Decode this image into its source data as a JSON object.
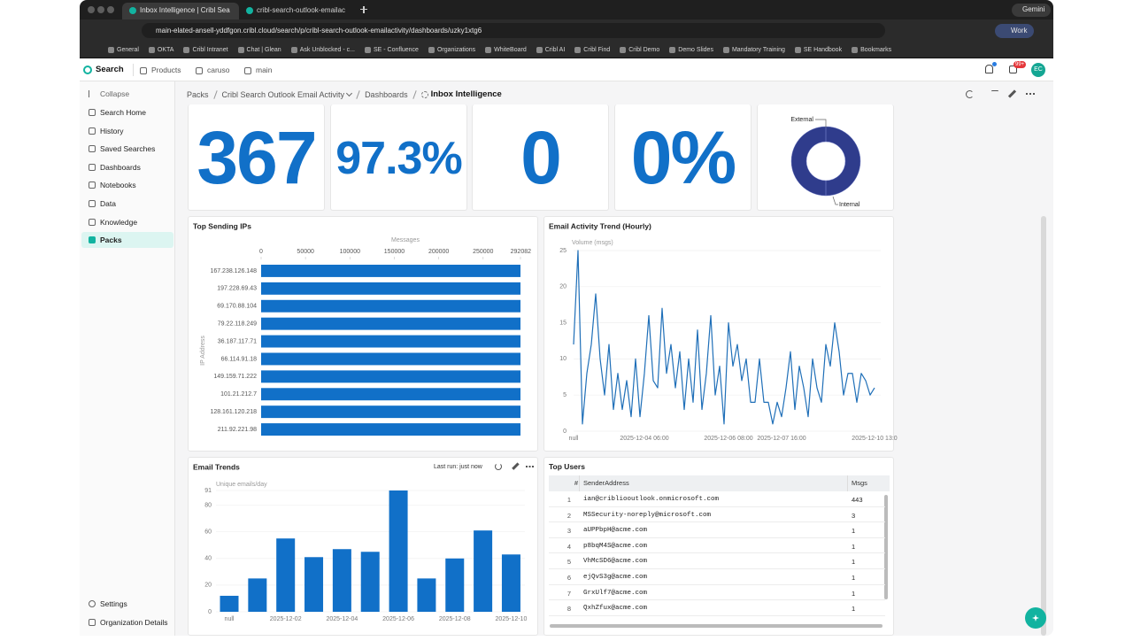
{
  "browser": {
    "tabs": [
      "Inbox Intelligence | Cribl Sea",
      "cribl-search-outlook-emailac"
    ],
    "url": "main-elated-ansell-yddfgon.cribl.cloud/search/p/cribl-search-outlook-emailactivity/dashboards/uzky1xtg6",
    "profile": "Work",
    "assistant": "Gemini",
    "bookmarks": [
      "General",
      "OKTA",
      "Cribl Intranet",
      "Chat | Glean",
      "Ask Unblocked - c...",
      "SE - Confluence",
      "Organizations",
      "WhiteBoard",
      "Cribl AI",
      "Cribl Find",
      "Cribl Demo",
      "Demo Slides",
      "Mandatory Training",
      "SE Handbook",
      "Bookmarks"
    ]
  },
  "app": {
    "product": "Search",
    "menu": [
      "Products",
      "caruso",
      "main"
    ],
    "badge": "99+",
    "avatar": "EC"
  },
  "sidebar": {
    "collapse": "Collapse",
    "items": [
      "Search Home",
      "History",
      "Saved Searches",
      "Dashboards",
      "Notebooks",
      "Data",
      "Knowledge",
      "Packs"
    ],
    "active": 7,
    "bottom": [
      "Settings",
      "Organization Details"
    ]
  },
  "breadcrumb": [
    "Packs",
    "Cribl Search Outlook Email Activity",
    "Dashboards",
    "Inbox Intelligence"
  ],
  "tiles": [
    "367",
    "97.3%",
    "0",
    "0%"
  ],
  "chart_data": [
    {
      "type": "pie",
      "donut": true,
      "categories": [
        "External",
        "Internal"
      ],
      "values": [
        0,
        100
      ],
      "colors": [
        "#5b6bd0",
        "#2f3c8c"
      ]
    },
    {
      "type": "bar",
      "orientation": "horizontal",
      "title": "Top Sending IPs",
      "x_label": "Messages",
      "y_label": "IP Address",
      "color": "#1170c8",
      "categories": [
        "167.238.126.148",
        "197.228.69.43",
        "69.170.88.104",
        "79.22.118.249",
        "36.187.117.71",
        "66.114.91.18",
        "149.159.71.222",
        "101.21.212.7",
        "128.161.120.218",
        "211.92.221.98"
      ],
      "values": [
        292082,
        292082,
        292082,
        292082,
        292082,
        292082,
        292082,
        292082,
        292082,
        292082
      ],
      "xlim": [
        0,
        292082
      ],
      "xticks": [
        0,
        50000,
        100000,
        150000,
        200000,
        250000,
        292082
      ],
      "grid": false
    },
    {
      "type": "line",
      "title": "Email Activity Trend (Hourly)",
      "y_label": "Volume (msgs)",
      "color": "#1f6fb8",
      "categories": [
        "null",
        null,
        null,
        null,
        null,
        null,
        null,
        null,
        null,
        null,
        null,
        null,
        null,
        null,
        null,
        null,
        "2025-12-04 06:00",
        null,
        null,
        null,
        null,
        null,
        null,
        null,
        null,
        null,
        null,
        null,
        null,
        null,
        null,
        null,
        null,
        null,
        null,
        "2025-12-06 08:00",
        null,
        null,
        null,
        null,
        null,
        null,
        null,
        null,
        null,
        null,
        null,
        "2025-12-07 16:00",
        null,
        null,
        null,
        null,
        null,
        null,
        null,
        null,
        null,
        null,
        null,
        null,
        null,
        null,
        null,
        null,
        null,
        null,
        null,
        null,
        "2025-12-10 13:0"
      ],
      "values": [
        12,
        25,
        1,
        8,
        12,
        19,
        10,
        5,
        12,
        3,
        8,
        3,
        7,
        2,
        10,
        2,
        8,
        16,
        7,
        6,
        17,
        8,
        12,
        6,
        11,
        3,
        10,
        4,
        14,
        3,
        8,
        16,
        5,
        9,
        1,
        15,
        9,
        12,
        7,
        10,
        4,
        4,
        10,
        4,
        4,
        1,
        4,
        2,
        6,
        11,
        3,
        9,
        6,
        2,
        10,
        6,
        4,
        12,
        9,
        15,
        11,
        5,
        8,
        8,
        4,
        8,
        7,
        5,
        6
      ],
      "ylim": [
        0,
        25
      ],
      "yticks": [
        0,
        5,
        10,
        15,
        20,
        25
      ],
      "grid": true
    },
    {
      "type": "bar",
      "orientation": "vertical",
      "title": "Email Trends",
      "status": "Last run: just now",
      "y_label": "Unique emails/day",
      "color": "#1170c8",
      "categories": [
        "null",
        null,
        "2025-12-02",
        null,
        "2025-12-04",
        null,
        "2025-12-06",
        null,
        "2025-12-08",
        null,
        "2025-12-10"
      ],
      "values": [
        12,
        25,
        55,
        41,
        47,
        45,
        91,
        25,
        40,
        61,
        43
      ],
      "ylim": [
        0,
        91
      ],
      "yticks": [
        0,
        20,
        40,
        60,
        80,
        91
      ],
      "grid": true
    }
  ],
  "top_users": {
    "title": "Top Users",
    "columns": [
      "#",
      "SenderAddress",
      "Msgs"
    ],
    "rows": [
      [
        1,
        "ian@cribliooutlook.onmicrosoft.com",
        443
      ],
      [
        2,
        "MSSecurity-noreply@microsoft.com",
        3
      ],
      [
        3,
        "aUPPbpH@acme.com",
        1
      ],
      [
        4,
        "p8bqM4S@acme.com",
        1
      ],
      [
        5,
        "VhMcSD6@acme.com",
        1
      ],
      [
        6,
        "ejQvS3g@acme.com",
        1
      ],
      [
        7,
        "GrxUlf7@acme.com",
        1
      ],
      [
        8,
        "QxhZfux@acme.com",
        1
      ]
    ]
  }
}
